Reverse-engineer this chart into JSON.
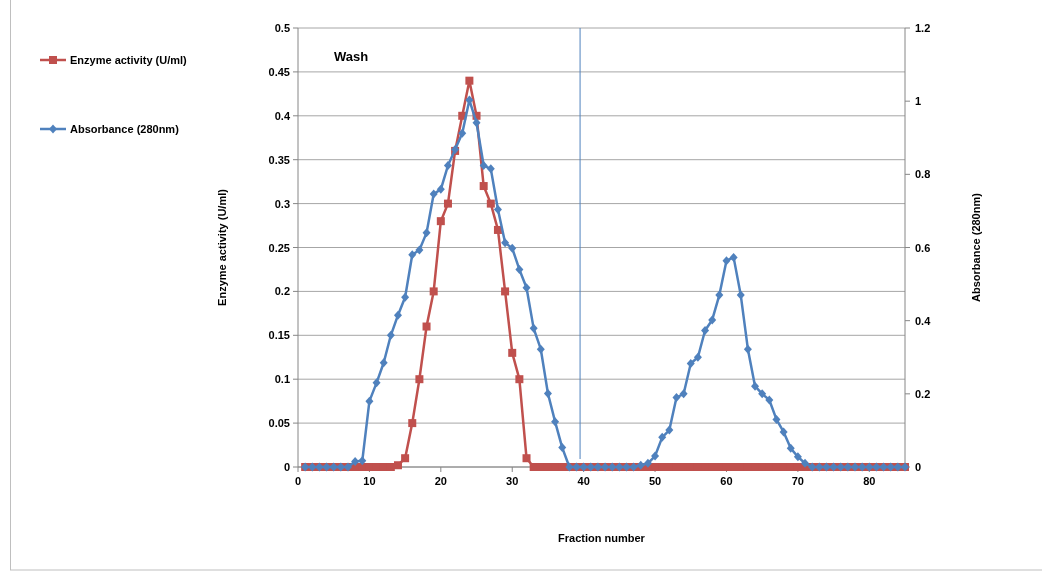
{
  "chart_data": {
    "type": "line",
    "xlabel": "Fraction number",
    "ylabel": "Enzyme activity (U/ml)",
    "y2label": "Absorbance (280nm)",
    "annotations": [
      "Wash"
    ],
    "x": [
      1,
      2,
      3,
      4,
      5,
      6,
      7,
      8,
      9,
      10,
      11,
      12,
      13,
      14,
      15,
      16,
      17,
      18,
      19,
      20,
      21,
      22,
      23,
      24,
      25,
      26,
      27,
      28,
      29,
      30,
      31,
      32,
      33,
      34,
      35,
      36,
      37,
      38,
      39,
      40,
      41,
      42,
      43,
      44,
      45,
      46,
      47,
      48,
      49,
      50,
      51,
      52,
      53,
      54,
      55,
      56,
      57,
      58,
      59,
      60,
      61,
      62,
      63,
      64,
      65,
      66,
      67,
      68,
      69,
      70,
      71,
      72,
      73,
      74,
      75,
      76,
      77,
      78,
      79,
      80,
      81,
      82,
      83,
      84,
      85
    ],
    "series": [
      {
        "name": "Enzyme activity (U/ml)",
        "color": "#c0504d",
        "marker": "square",
        "values": [
          0,
          0,
          0,
          0,
          0,
          0,
          0,
          0,
          0,
          0,
          0,
          0,
          0,
          0.002,
          0.01,
          0.05,
          0.1,
          0.16,
          0.2,
          0.28,
          0.3,
          0.36,
          0.4,
          0.44,
          0.4,
          0.32,
          0.3,
          0.27,
          0.2,
          0.13,
          0.1,
          0.01,
          0,
          0,
          0,
          0,
          0,
          0,
          0,
          0,
          0,
          0,
          0,
          0,
          0,
          0,
          0,
          0,
          0,
          0,
          0,
          0,
          0,
          0,
          0,
          0,
          0,
          0,
          0,
          0,
          0,
          0,
          0,
          0,
          0,
          0,
          0,
          0,
          0,
          0,
          0,
          0,
          0,
          0,
          0,
          0,
          0,
          0,
          0,
          0,
          0,
          0,
          0,
          0,
          0
        ]
      },
      {
        "name": "Absorbance (280nm)",
        "color": "#4f81bd",
        "marker": "diamond",
        "axis": "y2",
        "values": [
          0,
          0,
          0,
          0,
          0,
          0,
          0,
          0.015,
          0.017,
          0.18,
          0.23,
          0.285,
          0.36,
          0.415,
          0.464,
          0.58,
          0.593,
          0.64,
          0.746,
          0.759,
          0.824,
          0.868,
          0.912,
          1.003,
          0.941,
          0.824,
          0.815,
          0.704,
          0.613,
          0.598,
          0.54,
          0.49,
          0.379,
          0.322,
          0.201,
          0.124,
          0.053,
          0,
          0,
          0,
          0,
          0,
          0,
          0,
          0,
          0,
          0,
          0.005,
          0.01,
          0.03,
          0.081,
          0.101,
          0.19,
          0.2,
          0.283,
          0.3,
          0.373,
          0.402,
          0.47,
          0.564,
          0.573,
          0.47,
          0.322,
          0.221,
          0.2,
          0.183,
          0.13,
          0.096,
          0.051,
          0.028,
          0.01,
          0,
          0,
          0,
          0,
          0,
          0,
          0,
          0,
          0,
          0,
          0,
          0,
          0,
          0
        ]
      }
    ],
    "xlim": [
      0,
      85
    ],
    "xticks": [
      0,
      10,
      20,
      30,
      40,
      50,
      60,
      70,
      80
    ],
    "ylim": [
      0,
      0.5
    ],
    "yticks": [
      0,
      0.05,
      0.1,
      0.15,
      0.2,
      0.25,
      0.3,
      0.35,
      0.4,
      0.45,
      0.5
    ],
    "y2lim": [
      0,
      1.2
    ],
    "y2ticks": [
      0,
      0.2,
      0.4,
      0.6,
      0.8,
      1,
      1.2
    ],
    "ref_lines": [
      {
        "axis": "x",
        "value": 39.5,
        "color": "#4f81bd"
      }
    ],
    "grid": "y",
    "legend": "left"
  }
}
